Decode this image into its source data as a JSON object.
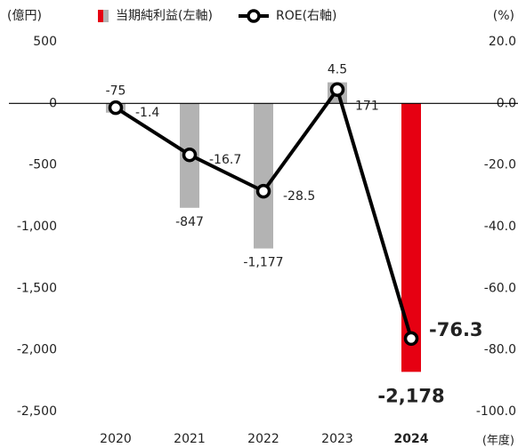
{
  "chart_data": {
    "type": "bar_line",
    "y_axis_label": "(億円)",
    "y2_axis_label": "(%)",
    "x_axis_label": "(年度)",
    "categories": [
      "2020",
      "2021",
      "2022",
      "2023",
      "2024"
    ],
    "series": [
      {
        "name": "当期純利益(左軸)",
        "type": "bar",
        "colors": [
          "#b3b3b3",
          "#b3b3b3",
          "#b3b3b3",
          "#b3b3b3",
          "#e60012"
        ],
        "values": [
          -75,
          -847,
          -1177,
          171,
          -2178
        ],
        "value_labels": [
          "-75",
          "-847",
          "-1,177",
          "171",
          "-2,178"
        ]
      },
      {
        "name": "ROE(右軸)",
        "type": "line",
        "axis": "y2",
        "color": "#000000",
        "values": [
          -1.4,
          -16.7,
          -28.5,
          4.5,
          -76.3
        ]
      }
    ],
    "ylim": [
      -2500,
      500
    ],
    "yticks": [
      500,
      0,
      -500,
      {
        "value": -1000,
        "label": "-1,000"
      },
      {
        "value": -1500,
        "label": "-1,500"
      },
      {
        "value": -2000,
        "label": "-2,000"
      },
      {
        "value": -2500,
        "label": "-2,500"
      }
    ],
    "y2lim": [
      -100,
      20
    ],
    "y2ticks": [
      {
        "value": 20,
        "label": "20.0"
      },
      {
        "value": 0,
        "label": "0.0"
      },
      {
        "value": -20,
        "label": "-20.0"
      },
      {
        "value": -40,
        "label": "-40.0"
      },
      {
        "value": -60,
        "label": "-60.0"
      },
      {
        "value": -80,
        "label": "-80.0"
      },
      {
        "value": -100,
        "label": "-100.0"
      }
    ],
    "grid": false
  }
}
